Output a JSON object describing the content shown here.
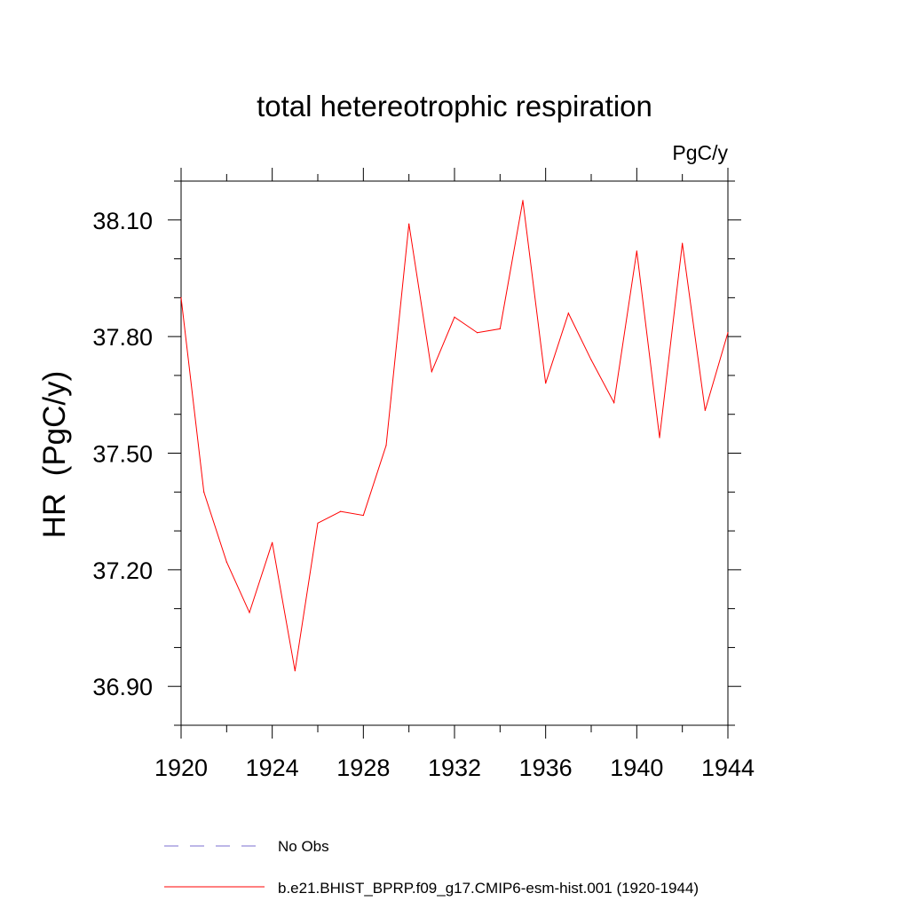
{
  "chart_data": {
    "type": "line",
    "title": "total hetereotrophic respiration",
    "units_label": "PgC/y",
    "ylabel": "HR  (PgC/y)",
    "xlabel": "",
    "xlim": [
      1920,
      1944
    ],
    "ylim": [
      36.8,
      38.2
    ],
    "x_ticks": [
      1920,
      1924,
      1928,
      1932,
      1936,
      1940,
      1944
    ],
    "x_tick_labels": [
      "1920",
      "1924",
      "1928",
      "1932",
      "1936",
      "1940",
      "1944"
    ],
    "y_ticks": [
      36.9,
      37.2,
      37.5,
      37.8,
      38.1
    ],
    "y_tick_labels": [
      "36.90",
      "37.20",
      "37.50",
      "37.80",
      "38.10"
    ],
    "grid": false,
    "legend_position": "bottom",
    "series": [
      {
        "name": "b.e21.BHIST_BPRP.f09_g17.CMIP6-esm-hist.001 (1920-1944)",
        "color": "#ff0000",
        "dash": "solid",
        "x": [
          1920,
          1921,
          1922,
          1923,
          1924,
          1925,
          1926,
          1927,
          1928,
          1929,
          1930,
          1931,
          1932,
          1933,
          1934,
          1935,
          1936,
          1937,
          1938,
          1939,
          1940,
          1941,
          1942,
          1943,
          1944
        ],
        "values": [
          37.9,
          37.4,
          37.22,
          37.09,
          37.27,
          36.94,
          37.32,
          37.35,
          37.34,
          37.52,
          38.09,
          37.71,
          37.85,
          37.81,
          37.82,
          38.15,
          37.68,
          37.86,
          37.74,
          37.63,
          38.02,
          37.54,
          38.04,
          37.61,
          37.81
        ]
      }
    ],
    "legend": [
      {
        "label": "No Obs",
        "color": "#7b6fd0",
        "dash": "dashed"
      },
      {
        "label": "b.e21.BHIST_BPRP.f09_g17.CMIP6-esm-hist.001 (1920-1944)",
        "color": "#ff0000",
        "dash": "solid"
      }
    ]
  }
}
